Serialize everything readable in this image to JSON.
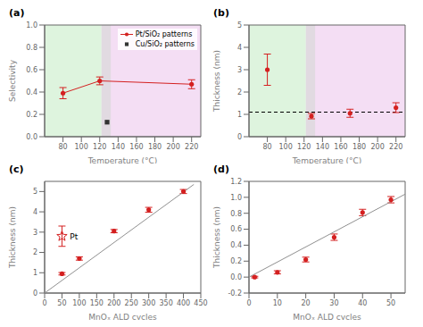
{
  "chart_data": [
    {
      "type": "scatter",
      "title": "(a)",
      "xlabel": "Temperature (°C)",
      "ylabel": "Selectivity",
      "xlim": [
        60,
        230
      ],
      "ylim": [
        0,
        1.0
      ],
      "xticks": [
        80,
        100,
        120,
        140,
        160,
        180,
        200,
        220
      ],
      "yticks": [
        {
          "value": 0.0,
          "label": "0.0"
        },
        0.2,
        0.4,
        0.6,
        0.8,
        {
          "value": 1.0,
          "label": "1.0"
        }
      ],
      "regions": [
        {
          "x": [
            60,
            122
          ],
          "color": "#d0f0d0"
        },
        {
          "x": [
            122,
            230
          ],
          "color": "#f0d0f0"
        },
        {
          "x": [
            122,
            132
          ],
          "color": "#d8d8d8"
        }
      ],
      "series": [
        {
          "name": "Pt/SiO₂ patterns",
          "color": "#d42020",
          "marker": "circle",
          "line_style": "solid",
          "x": [
            80,
            120,
            220
          ],
          "values": [
            0.39,
            0.5,
            0.47
          ],
          "errors": [
            0.05,
            0.035,
            0.04
          ]
        },
        {
          "name": "Cu/SiO₂ patterns",
          "color": "#333333",
          "marker": "square",
          "line_style": "none",
          "x": [
            128
          ],
          "values": [
            0.13
          ]
        }
      ],
      "legend": "upper right"
    },
    {
      "type": "scatter",
      "title": "(b)",
      "xlabel": "Temperature (°C)",
      "ylabel": "Thickness (nm)",
      "xlim": [
        60,
        230
      ],
      "ylim": [
        0,
        5
      ],
      "xticks": [
        80,
        100,
        120,
        140,
        160,
        180,
        200,
        220
      ],
      "yticks": [
        0,
        1,
        2,
        3,
        4,
        5
      ],
      "regions": [
        {
          "x": [
            60,
            122
          ],
          "color": "#d0f0d0"
        },
        {
          "x": [
            122,
            230
          ],
          "color": "#f0d0f0"
        },
        {
          "x": [
            122,
            132
          ],
          "color": "#d8d8d8"
        }
      ],
      "series": [
        {
          "color": "#d42020",
          "marker": "circle",
          "line_style": "none",
          "x": [
            80,
            128,
            170,
            220
          ],
          "values": [
            3.0,
            0.92,
            1.05,
            1.3
          ],
          "errors": [
            0.7,
            0.12,
            0.18,
            0.22
          ]
        }
      ],
      "hlines": [
        {
          "y": 1.1,
          "color": "#000000",
          "line_style": "dashed"
        }
      ]
    },
    {
      "type": "scatter",
      "title": "(c)",
      "xlabel": "MnOₓ ALD cycles",
      "ylabel": "Thickness (nm)",
      "xlim": [
        0,
        450
      ],
      "ylim": [
        0,
        5.5
      ],
      "xticks": [
        0,
        50,
        100,
        150,
        200,
        250,
        300,
        350,
        400,
        450
      ],
      "yticks": [
        0,
        1,
        2,
        3,
        4,
        5
      ],
      "series": [
        {
          "color": "#909090",
          "marker": "none",
          "line_style": "solid",
          "x": [
            0,
            430
          ],
          "values": [
            0.0,
            5.35
          ]
        },
        {
          "color": "#d42020",
          "marker": "circle",
          "line_style": "none",
          "x": [
            50,
            100,
            200,
            300,
            400
          ],
          "values": [
            0.95,
            1.7,
            3.05,
            4.1,
            5.0
          ],
          "errors": [
            0.06,
            0.08,
            0.08,
            0.12,
            0.1
          ]
        },
        {
          "color": "#d42020",
          "marker": "star",
          "line_style": "none",
          "x": [
            50
          ],
          "values": [
            2.8
          ],
          "errors": [
            0.5
          ]
        }
      ],
      "annotations": [
        {
          "text": "Pt",
          "x": 60,
          "y": 2.78
        }
      ]
    },
    {
      "type": "scatter",
      "title": "(d)",
      "xlabel": "MnOₓ ALD cycles",
      "ylabel": "Thickness (nm)",
      "xlim": [
        0,
        55
      ],
      "ylim": [
        -0.2,
        1.2
      ],
      "xticks": [
        0,
        10,
        20,
        30,
        40,
        50
      ],
      "yticks": [
        -0.2,
        {
          "value": 0.0,
          "label": "0.0"
        },
        0.2,
        0.4,
        0.6,
        0.8,
        {
          "value": 1.0,
          "label": "1.0"
        },
        1.2
      ],
      "series": [
        {
          "color": "#909090",
          "marker": "none",
          "line_style": "solid",
          "x": [
            0,
            55
          ],
          "values": [
            0.0,
            1.04
          ]
        },
        {
          "color": "#d42020",
          "marker": "circle",
          "line_style": "none",
          "x": [
            2,
            10,
            20,
            30,
            40,
            50
          ],
          "values": [
            0.0,
            0.06,
            0.22,
            0.5,
            0.81,
            0.97
          ],
          "errors": [
            0.01,
            0.02,
            0.03,
            0.04,
            0.04,
            0.04
          ]
        }
      ]
    }
  ]
}
